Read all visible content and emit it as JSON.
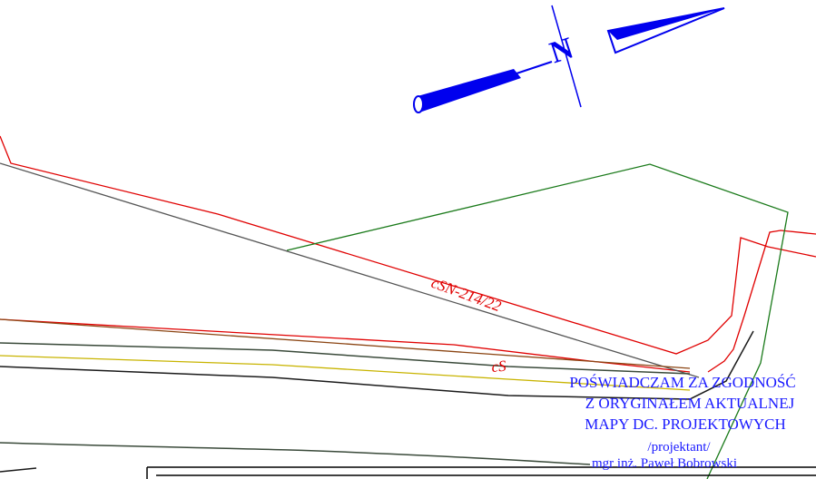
{
  "map": {
    "parcel_label": "cSN-214/22",
    "road_label": "cS",
    "north_arrow_letter": "N",
    "north_arrow_icon": "north-arrow-icon"
  },
  "certification": {
    "line1": "POŚWIADCZAM ZA ZGODNOŚĆ",
    "line2": "Z ORYGINAŁEM AKTUALNEJ",
    "line3": "MAPY DC. PROJEKTOWYCH",
    "role": "/projektant/",
    "name": "mgr inż. Paweł Bobrowski"
  },
  "colors": {
    "red_line": "#e00000",
    "green_line": "#1a7a1a",
    "gray_line": "#555555",
    "brown_line": "#8b4513",
    "yellow_line": "#c8b400",
    "dark_line": "#1a1a1a",
    "stamp_blue": "#1a1aff",
    "north_arrow_blue": "#0000ee"
  }
}
